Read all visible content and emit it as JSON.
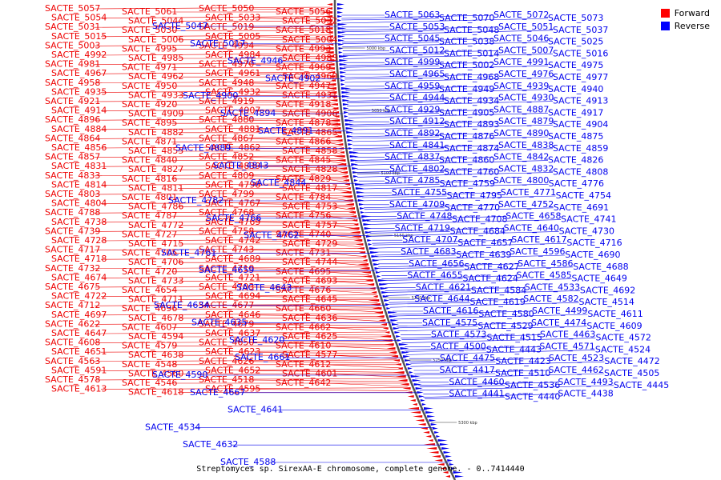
{
  "caption": "Streptomyces sp. SirexAA-E chromosome, complete genome. - 0..7414440",
  "legend": [
    {
      "label": "Forward",
      "color": "#ff0000"
    },
    {
      "label": "Reverse",
      "color": "#0000ff"
    }
  ],
  "colors": {
    "forward": "#ee0000",
    "reverse": "#0000ee",
    "backbone": "#555555"
  },
  "scale_ticks": [
    "5000 kbp",
    "5050 kbp",
    "5100 kbp",
    "5150 kbp",
    "5200 kbp",
    "5250 kbp",
    "5300 kbp"
  ],
  "forward_labels": [
    "SACTE_5057",
    "SACTE_5061",
    "SACTE_5050",
    "SACTE_5056",
    "SACTE_5054",
    "SACTE_5044",
    "SACTE_5033",
    "SACTE_5032",
    "SACTE_5031",
    "SACTE_5030",
    "SACTE_5019",
    "SACTE_5018",
    "SACTE_5015",
    "SACTE_5006",
    "SACTE_5005",
    "SACTE_5004",
    "SACTE_5003",
    "SACTE_4995",
    "SACTE_4994",
    "SACTE_4993",
    "SACTE_4992",
    "SACTE_4985",
    "SACTE_4984",
    "SACTE_4983",
    "SACTE_4981",
    "SACTE_4971",
    "SACTE_4970",
    "SACTE_4969",
    "SACTE_4967",
    "SACTE_4962",
    "SACTE_4961",
    "SACTE_4960",
    "SACTE_4958",
    "SACTE_4950",
    "SACTE_4948",
    "SACTE_4947",
    "SACTE_4935",
    "SACTE_4933",
    "SACTE_4932",
    "SACTE_4931",
    "SACTE_4921",
    "SACTE_4920",
    "SACTE_4919",
    "SACTE_4918",
    "SACTE_4914",
    "SACTE_4909",
    "SACTE_4907",
    "SACTE_4906",
    "SACTE_4896",
    "SACTE_4895",
    "SACTE_4880",
    "SACTE_4878",
    "SACTE_4884",
    "SACTE_4882",
    "SACTE_4881",
    "SACTE_4865",
    "SACTE_4864",
    "SACTE_4871",
    "SACTE_4867",
    "SACTE_4866",
    "SACTE_4856",
    "SACTE_4855",
    "SACTE_4862",
    "SACTE_4858",
    "SACTE_4857",
    "SACTE_4840",
    "SACTE_4852",
    "SACTE_4845",
    "SACTE_4831",
    "SACTE_4827",
    "SACTE_4839",
    "SACTE_4828",
    "SACTE_4833",
    "SACTE_4816",
    "SACTE_4809",
    "SACTE_4829",
    "SACTE_4814",
    "SACTE_4811",
    "SACTE_4798",
    "SACTE_4817",
    "SACTE_4803",
    "SACTE_4801",
    "SACTE_4799",
    "SACTE_4784",
    "SACTE_4804",
    "SACTE_4786",
    "SACTE_4767",
    "SACTE_4753",
    "SACTE_4788",
    "SACTE_4787",
    "SACTE_4768",
    "SACTE_4756",
    "SACTE_4738",
    "SACTE_4772",
    "SACTE_4769",
    "SACTE_4757",
    "SACTE_4739",
    "SACTE_4727",
    "SACTE_4758",
    "SACTE_4740",
    "SACTE_4728",
    "SACTE_4715",
    "SACTE_4742",
    "SACTE_4729",
    "SACTE_4717",
    "SACTE_4705",
    "SACTE_4743",
    "SACTE_4731",
    "SACTE_4718",
    "SACTE_4706",
    "SACTE_4689",
    "SACTE_4744",
    "SACTE_4732",
    "SACTE_4720",
    "SACTE_4710",
    "SACTE_4695",
    "SACTE_4674",
    "SACTE_4733",
    "SACTE_4721",
    "SACTE_4693",
    "SACTE_4675",
    "SACTE_4654",
    "SACTE_4703",
    "SACTE_4676",
    "SACTE_4722",
    "SACTE_4711",
    "SACTE_4694",
    "SACTE_4645",
    "SACTE_4712",
    "SACTE_4696",
    "SACTE_4677",
    "SACTE_4660",
    "SACTE_4697",
    "SACTE_4678",
    "SACTE_4646",
    "SACTE_4636",
    "SACTE_4622",
    "SACTE_4607",
    "SACTE_4679",
    "SACTE_4662",
    "SACTE_4647",
    "SACTE_4594",
    "SACTE_4637",
    "SACTE_4625",
    "SACTE_4608",
    "SACTE_4579",
    "SACTE_4650",
    "SACTE_4610",
    "SACTE_4651",
    "SACTE_4638",
    "SACTE_4623",
    "SACTE_4577",
    "SACTE_4563",
    "SACTE_4548",
    "SACTE_4626",
    "SACTE_4612",
    "SACTE_4591",
    "SACTE_4560",
    "SACTE_4652",
    "SACTE_4601",
    "SACTE_4578",
    "SACTE_4546",
    "SACTE_4518",
    "SACTE_4642",
    "SACTE_4613",
    "SACTE_4618",
    "SACTE_4595"
  ],
  "reverse_labels_left": [
    "SACTE_5047",
    "SACTE_5017",
    "SACTE_4946",
    "SACTE_4902",
    "SACTE_4900",
    "SACTE_4894",
    "SACTE_4891",
    "SACTE_4889",
    "SACTE_4843",
    "SACTE_4844",
    "SACTE_4782",
    "SACTE_4766",
    "SACTE_4762",
    "SACTE_4761",
    "SACTE_4659",
    "SACTE_4643",
    "SACTE_4634",
    "SACTE_4635",
    "SACTE_4620",
    "SACTE_4661",
    "SACTE_4590",
    "SACTE_4667",
    "SACTE_4641",
    "SACTE_4534",
    "SACTE_4632",
    "SACTE_4588"
  ],
  "reverse_labels_right": [
    "SACTE_5063",
    "SACTE_5070",
    "SACTE_5072",
    "SACTE_5073",
    "SACTE_5053",
    "SACTE_5048",
    "SACTE_5051",
    "SACTE_5037",
    "SACTE_5045",
    "SACTE_5038",
    "SACTE_5046",
    "SACTE_5025",
    "SACTE_5012",
    "SACTE_5014",
    "SACTE_5007",
    "SACTE_5016",
    "SACTE_4999",
    "SACTE_5002",
    "SACTE_4991",
    "SACTE_4975",
    "SACTE_4965",
    "SACTE_4968",
    "SACTE_4976",
    "SACTE_4977",
    "SACTE_4959",
    "SACTE_4949",
    "SACTE_4939",
    "SACTE_4940",
    "SACTE_4944",
    "SACTE_4934",
    "SACTE_4930",
    "SACTE_4913",
    "SACTE_4929",
    "SACTE_4905",
    "SACTE_4887",
    "SACTE_4917",
    "SACTE_4912",
    "SACTE_4893",
    "SACTE_4879",
    "SACTE_4904",
    "SACTE_4892",
    "SACTE_4876",
    "SACTE_4890",
    "SACTE_4875",
    "SACTE_4841",
    "SACTE_4874",
    "SACTE_4838",
    "SACTE_4859",
    "SACTE_4837",
    "SACTE_4860",
    "SACTE_4842",
    "SACTE_4826",
    "SACTE_4802",
    "SACTE_4760",
    "SACTE_4832",
    "SACTE_4808",
    "SACTE_4785",
    "SACTE_4759",
    "SACTE_4800",
    "SACTE_4776",
    "SACTE_4755",
    "SACTE_4795",
    "SACTE_4771",
    "SACTE_4754",
    "SACTE_4709",
    "SACTE_4770",
    "SACTE_4752",
    "SACTE_4691",
    "SACTE_4748",
    "SACTE_4708",
    "SACTE_4658",
    "SACTE_4741",
    "SACTE_4719",
    "SACTE_4684",
    "SACTE_4640",
    "SACTE_4730",
    "SACTE_4707",
    "SACTE_4657",
    "SACTE_4617",
    "SACTE_4716",
    "SACTE_4683",
    "SACTE_4639",
    "SACTE_4596",
    "SACTE_4690",
    "SACTE_4656",
    "SACTE_4627",
    "SACTE_4586",
    "SACTE_4688",
    "SACTE_4655",
    "SACTE_4624",
    "SACTE_4585",
    "SACTE_4649",
    "SACTE_4621",
    "SACTE_4584",
    "SACTE_4533",
    "SACTE_4692",
    "SACTE_4644",
    "SACTE_4619",
    "SACTE_4582",
    "SACTE_4514",
    "SACTE_4616",
    "SACTE_4580",
    "SACTE_4499",
    "SACTE_4611",
    "SACTE_4575",
    "SACTE_4529",
    "SACTE_4474",
    "SACTE_4609",
    "SACTE_4573",
    "SACTE_4515",
    "SACTE_4463",
    "SACTE_4572",
    "SACTE_4500",
    "SACTE_4443",
    "SACTE_4571",
    "SACTE_4524",
    "SACTE_4475",
    "SACTE_4423",
    "SACTE_4523",
    "SACTE_4472",
    "SACTE_4417",
    "SACTE_4510",
    "SACTE_4462",
    "SACTE_4505",
    "SACTE_4460",
    "SACTE_4536",
    "SACTE_4493",
    "SACTE_4445",
    "SACTE_4441",
    "SACTE_4440",
    "SACTE_4438"
  ]
}
